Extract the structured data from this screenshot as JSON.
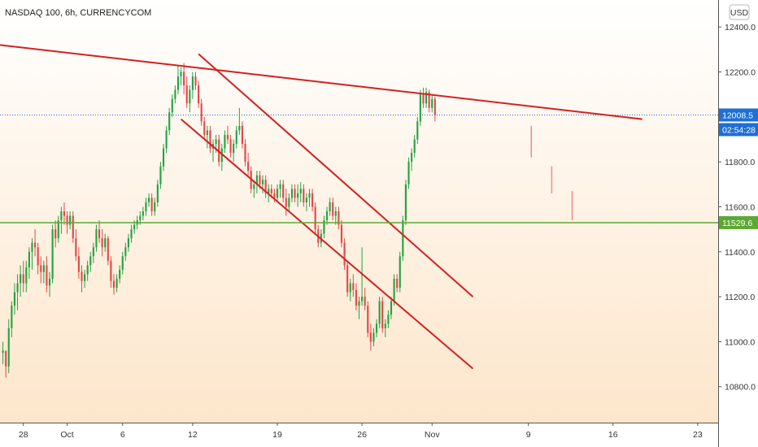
{
  "header": {
    "title": "NASDAQ 100, 6h, CURRENCYCOM"
  },
  "currency_button": {
    "label": "USD"
  },
  "price_tags": {
    "last_price": "12008.5",
    "countdown": "02:54:28",
    "support_level": "11529.6"
  },
  "colors": {
    "up": "#26a343",
    "down": "#e24a4a",
    "trendline": "#d42020",
    "support": "#5ca832",
    "tag_blue": "#1e6fd8",
    "bg_top": "#ffffff",
    "bg_bottom": "#fde6cb"
  },
  "chart_data": {
    "type": "candlestick",
    "title": "NASDAQ 100, 6h, CURRENCYCOM",
    "y_ticks": [
      10800,
      11000,
      11200,
      11400,
      11600,
      11800,
      12000,
      12200,
      12400
    ],
    "y_tick_labels": [
      "10800.0",
      "11000.0",
      "11200.0",
      "11400.0",
      "11600.0",
      "11800.0",
      "12000.0",
      "12200.0",
      "12400.0"
    ],
    "x_tick_labels": [
      {
        "label": "28",
        "at": 7
      },
      {
        "label": "Oct",
        "at": 22
      },
      {
        "label": "6",
        "at": 41
      },
      {
        "label": "12",
        "at": 65
      },
      {
        "label": "19",
        "at": 94
      },
      {
        "label": "26",
        "at": 123
      },
      {
        "label": "Nov",
        "at": 147
      },
      {
        "label": "9",
        "at": 180
      },
      {
        "label": "16",
        "at": 209
      },
      {
        "label": "23",
        "at": 238
      }
    ],
    "ylim": [
      10640,
      12520
    ],
    "xlim": [
      -1,
      245
    ],
    "last_price": 12008.5,
    "support_level": 11529.6,
    "candles": [
      [
        10950,
        11000,
        10900,
        10960
      ],
      [
        10960,
        10960,
        10840,
        10890
      ],
      [
        10890,
        11100,
        10860,
        11060
      ],
      [
        11060,
        11180,
        11020,
        11160
      ],
      [
        11160,
        11260,
        11120,
        11220
      ],
      [
        11220,
        11300,
        11140,
        11260
      ],
      [
        11260,
        11340,
        11200,
        11300
      ],
      [
        11300,
        11360,
        11220,
        11260
      ],
      [
        11260,
        11360,
        11220,
        11330
      ],
      [
        11330,
        11420,
        11280,
        11400
      ],
      [
        11400,
        11460,
        11320,
        11440
      ],
      [
        11440,
        11500,
        11380,
        11420
      ],
      [
        11420,
        11440,
        11300,
        11340
      ],
      [
        11340,
        11380,
        11260,
        11310
      ],
      [
        11310,
        11360,
        11260,
        11340
      ],
      [
        11340,
        11380,
        11220,
        11250
      ],
      [
        11250,
        11310,
        11200,
        11280
      ],
      [
        11280,
        11520,
        11260,
        11500
      ],
      [
        11500,
        11540,
        11420,
        11460
      ],
      [
        11460,
        11560,
        11440,
        11540
      ],
      [
        11540,
        11600,
        11480,
        11580
      ],
      [
        11580,
        11620,
        11520,
        11560
      ],
      [
        11560,
        11580,
        11480,
        11520
      ],
      [
        11520,
        11580,
        11500,
        11560
      ],
      [
        11560,
        11580,
        11440,
        11460
      ],
      [
        11460,
        11500,
        11360,
        11380
      ],
      [
        11380,
        11420,
        11280,
        11310
      ],
      [
        11310,
        11340,
        11220,
        11270
      ],
      [
        11270,
        11320,
        11240,
        11300
      ],
      [
        11300,
        11360,
        11270,
        11340
      ],
      [
        11340,
        11400,
        11310,
        11380
      ],
      [
        11380,
        11440,
        11350,
        11420
      ],
      [
        11420,
        11520,
        11400,
        11500
      ],
      [
        11500,
        11540,
        11440,
        11460
      ],
      [
        11460,
        11500,
        11380,
        11420
      ],
      [
        11420,
        11480,
        11400,
        11460
      ],
      [
        11460,
        11470,
        11340,
        11360
      ],
      [
        11360,
        11380,
        11240,
        11270
      ],
      [
        11270,
        11300,
        11210,
        11240
      ],
      [
        11240,
        11300,
        11220,
        11280
      ],
      [
        11280,
        11340,
        11260,
        11320
      ],
      [
        11320,
        11400,
        11300,
        11380
      ],
      [
        11380,
        11440,
        11360,
        11420
      ],
      [
        11420,
        11480,
        11400,
        11460
      ],
      [
        11460,
        11520,
        11440,
        11500
      ],
      [
        11500,
        11540,
        11480,
        11520
      ],
      [
        11520,
        11560,
        11500,
        11540
      ],
      [
        11540,
        11580,
        11520,
        11560
      ],
      [
        11560,
        11600,
        11540,
        11580
      ],
      [
        11580,
        11640,
        11560,
        11620
      ],
      [
        11620,
        11660,
        11600,
        11640
      ],
      [
        11640,
        11660,
        11560,
        11580
      ],
      [
        11580,
        11640,
        11560,
        11620
      ],
      [
        11620,
        11720,
        11600,
        11700
      ],
      [
        11700,
        11800,
        11680,
        11780
      ],
      [
        11780,
        11880,
        11760,
        11860
      ],
      [
        11860,
        11960,
        11840,
        11940
      ],
      [
        11940,
        12040,
        11920,
        12020
      ],
      [
        12020,
        12100,
        12000,
        12080
      ],
      [
        12080,
        12140,
        12060,
        12120
      ],
      [
        12120,
        12230,
        12100,
        12180
      ],
      [
        12180,
        12220,
        12140,
        12200
      ],
      [
        12200,
        12240,
        12100,
        12140
      ],
      [
        12140,
        12180,
        12040,
        12060
      ],
      [
        12060,
        12140,
        12020,
        12120
      ],
      [
        12120,
        12200,
        12080,
        12180
      ],
      [
        12180,
        12200,
        12120,
        12140
      ],
      [
        12140,
        12160,
        12040,
        12060
      ],
      [
        12060,
        12080,
        11960,
        11980
      ],
      [
        11980,
        12000,
        11900,
        11920
      ],
      [
        11920,
        11960,
        11860,
        11940
      ],
      [
        11940,
        11960,
        11840,
        11860
      ],
      [
        11860,
        11900,
        11800,
        11880
      ],
      [
        11880,
        11920,
        11840,
        11900
      ],
      [
        11900,
        11920,
        11780,
        11800
      ],
      [
        11800,
        11880,
        11760,
        11860
      ],
      [
        11860,
        11940,
        11840,
        11920
      ],
      [
        11920,
        11960,
        11880,
        11900
      ],
      [
        11900,
        11920,
        11820,
        11840
      ],
      [
        11840,
        11900,
        11800,
        11880
      ],
      [
        11880,
        11960,
        11860,
        11940
      ],
      [
        11940,
        12040,
        11920,
        11960
      ],
      [
        11960,
        11980,
        11860,
        11880
      ],
      [
        11880,
        11900,
        11780,
        11800
      ],
      [
        11800,
        11840,
        11740,
        11760
      ],
      [
        11760,
        11780,
        11660,
        11680
      ],
      [
        11680,
        11720,
        11640,
        11700
      ],
      [
        11700,
        11760,
        11660,
        11740
      ],
      [
        11740,
        11760,
        11680,
        11700
      ],
      [
        11700,
        11740,
        11660,
        11720
      ],
      [
        11720,
        11740,
        11640,
        11660
      ],
      [
        11660,
        11700,
        11620,
        11680
      ],
      [
        11680,
        11700,
        11640,
        11660
      ],
      [
        11660,
        11680,
        11620,
        11640
      ],
      [
        11640,
        11700,
        11620,
        11680
      ],
      [
        11680,
        11720,
        11640,
        11700
      ],
      [
        11700,
        11720,
        11620,
        11640
      ],
      [
        11640,
        11680,
        11560,
        11600
      ],
      [
        11600,
        11660,
        11580,
        11640
      ],
      [
        11640,
        11700,
        11620,
        11680
      ],
      [
        11680,
        11700,
        11620,
        11640
      ],
      [
        11640,
        11700,
        11600,
        11660
      ],
      [
        11660,
        11710,
        11620,
        11680
      ],
      [
        11680,
        11700,
        11600,
        11620
      ],
      [
        11620,
        11660,
        11580,
        11640
      ],
      [
        11640,
        11680,
        11600,
        11660
      ],
      [
        11660,
        11680,
        11580,
        11600
      ],
      [
        11600,
        11620,
        11480,
        11500
      ],
      [
        11500,
        11520,
        11420,
        11440
      ],
      [
        11440,
        11500,
        11420,
        11480
      ],
      [
        11480,
        11560,
        11460,
        11540
      ],
      [
        11540,
        11600,
        11520,
        11580
      ],
      [
        11580,
        11640,
        11560,
        11620
      ],
      [
        11620,
        11640,
        11540,
        11560
      ],
      [
        11560,
        11600,
        11520,
        11580
      ],
      [
        11580,
        11600,
        11500,
        11520
      ],
      [
        11520,
        11540,
        11420,
        11440
      ],
      [
        11440,
        11460,
        11320,
        11340
      ],
      [
        11340,
        11360,
        11200,
        11220
      ],
      [
        11220,
        11280,
        11180,
        11260
      ],
      [
        11260,
        11300,
        11200,
        11230
      ],
      [
        11230,
        11260,
        11140,
        11160
      ],
      [
        11160,
        11200,
        11100,
        11180
      ],
      [
        11180,
        11420,
        11160,
        11200
      ],
      [
        11200,
        11240,
        11140,
        11160
      ],
      [
        11160,
        11180,
        11020,
        11040
      ],
      [
        11040,
        11080,
        10960,
        11000
      ],
      [
        11000,
        11060,
        10980,
        11040
      ],
      [
        11040,
        11100,
        11020,
        11080
      ],
      [
        11080,
        11200,
        11060,
        11180
      ],
      [
        11180,
        11200,
        11040,
        11060
      ],
      [
        11060,
        11100,
        11020,
        11080
      ],
      [
        11080,
        11140,
        11060,
        11120
      ],
      [
        11120,
        11200,
        11100,
        11180
      ],
      [
        11180,
        11300,
        11160,
        11280
      ],
      [
        11280,
        11300,
        11220,
        11240
      ],
      [
        11240,
        11400,
        11220,
        11380
      ],
      [
        11380,
        11560,
        11360,
        11540
      ],
      [
        11540,
        11720,
        11520,
        11700
      ],
      [
        11700,
        11820,
        11680,
        11800
      ],
      [
        11800,
        11860,
        11760,
        11840
      ],
      [
        11840,
        11920,
        11820,
        11900
      ],
      [
        11900,
        12000,
        11880,
        11980
      ],
      [
        11980,
        12120,
        11960,
        12100
      ],
      [
        12100,
        12130,
        12040,
        12060
      ],
      [
        12060,
        12130,
        12040,
        12110
      ],
      [
        12110,
        12120,
        12020,
        12040
      ],
      [
        12040,
        12100,
        12020,
        12080
      ],
      [
        12080,
        12090,
        11980,
        12008.5
      ]
    ],
    "projection_segments": [
      {
        "x": 181,
        "y": [
          11960,
          11820
        ]
      },
      {
        "x": 188,
        "y": [
          11780,
          11660
        ]
      },
      {
        "x": 195,
        "y": [
          11670,
          11540
        ]
      }
    ],
    "trendlines": [
      {
        "x1": -1,
        "y1": 12320,
        "x2": 219,
        "y2": 11990
      },
      {
        "x1": 67,
        "y1": 12280,
        "x2": 161,
        "y2": 11200
      },
      {
        "x1": 61,
        "y1": 11990,
        "x2": 161,
        "y2": 10880
      }
    ]
  }
}
